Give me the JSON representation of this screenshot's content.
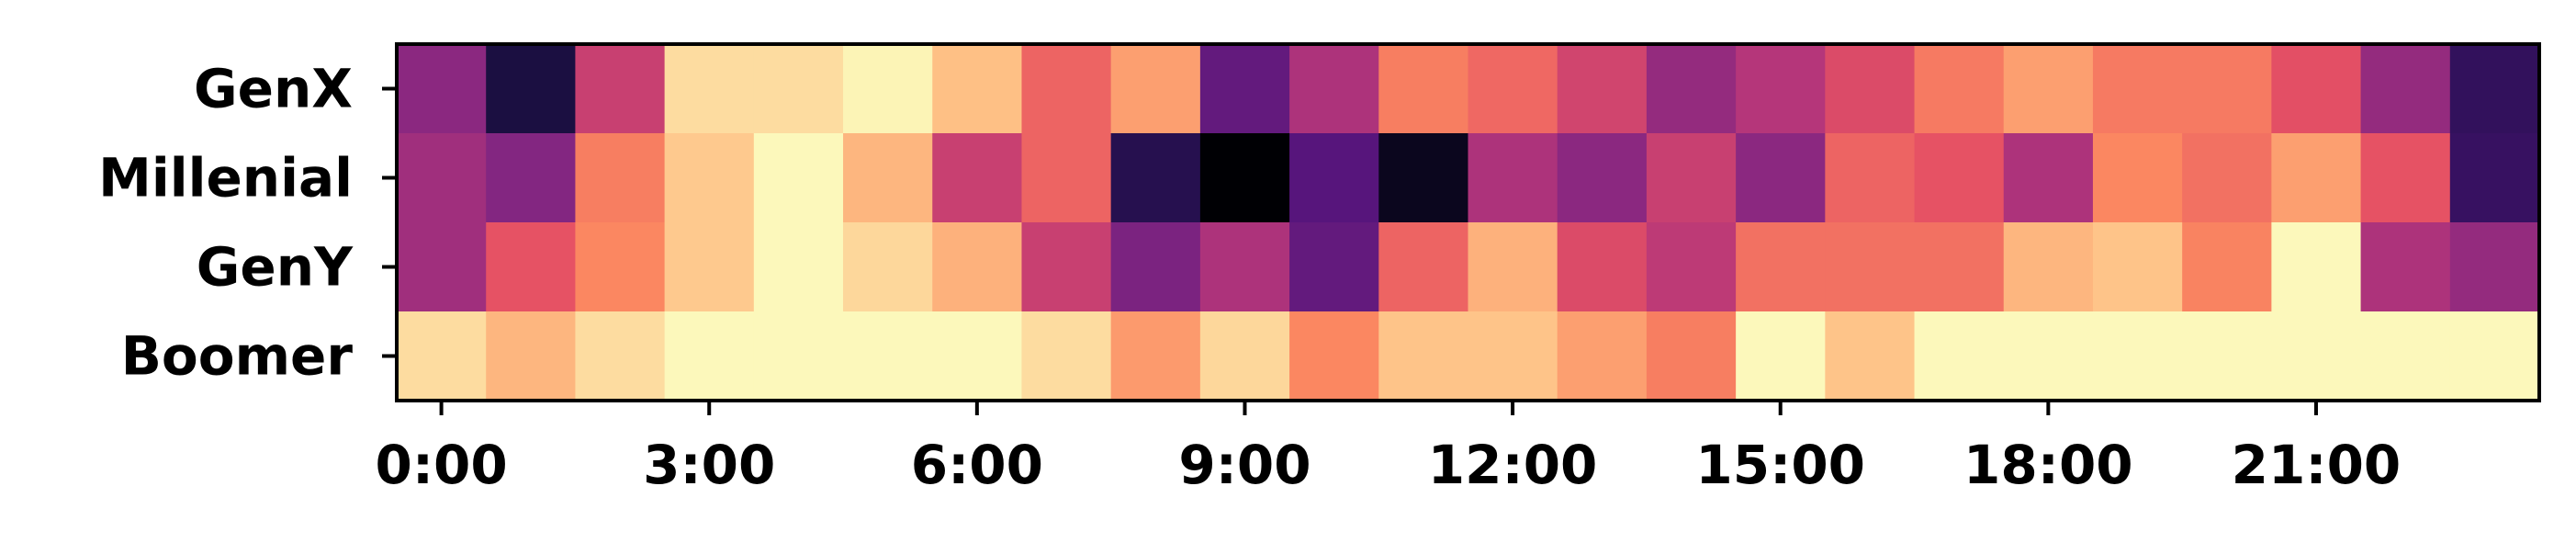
{
  "chart_data": {
    "type": "heatmap",
    "colormap": "magma",
    "value_range": [
      0,
      1
    ],
    "y_categories": [
      "GenX",
      "Millenial",
      "GenY",
      "Boomer"
    ],
    "x_hours": [
      0,
      1,
      2,
      3,
      4,
      5,
      6,
      7,
      8,
      9,
      10,
      11,
      12,
      13,
      14,
      15,
      16,
      17,
      18,
      19,
      20,
      21,
      22,
      23
    ],
    "x_tick_labels": [
      "0:00",
      "3:00",
      "6:00",
      "9:00",
      "12:00",
      "15:00",
      "18:00",
      "21:00"
    ],
    "x_tick_hours": [
      0,
      3,
      6,
      9,
      12,
      15,
      18,
      21
    ],
    "values": [
      [
        0.4,
        0.12,
        0.55,
        0.93,
        0.93,
        0.98,
        0.87,
        0.67,
        0.8,
        0.3,
        0.48,
        0.73,
        0.68,
        0.57,
        0.42,
        0.5,
        0.6,
        0.72,
        0.8,
        0.72,
        0.72,
        0.62,
        0.42,
        0.18
      ],
      [
        0.45,
        0.38,
        0.73,
        0.89,
        0.99,
        0.85,
        0.55,
        0.67,
        0.15,
        0.0,
        0.27,
        0.05,
        0.48,
        0.4,
        0.55,
        0.4,
        0.67,
        0.63,
        0.48,
        0.75,
        0.7,
        0.8,
        0.63,
        0.19
      ],
      [
        0.45,
        0.63,
        0.75,
        0.89,
        0.99,
        0.92,
        0.84,
        0.55,
        0.36,
        0.48,
        0.3,
        0.67,
        0.84,
        0.6,
        0.52,
        0.7,
        0.7,
        0.7,
        0.85,
        0.88,
        0.74,
        0.99,
        0.48,
        0.42
      ],
      [
        0.93,
        0.85,
        0.93,
        0.99,
        0.99,
        0.99,
        0.99,
        0.93,
        0.79,
        0.92,
        0.75,
        0.88,
        0.88,
        0.8,
        0.73,
        0.99,
        0.88,
        0.99,
        0.99,
        0.99,
        0.99,
        0.99,
        0.99,
        0.99
      ]
    ]
  }
}
